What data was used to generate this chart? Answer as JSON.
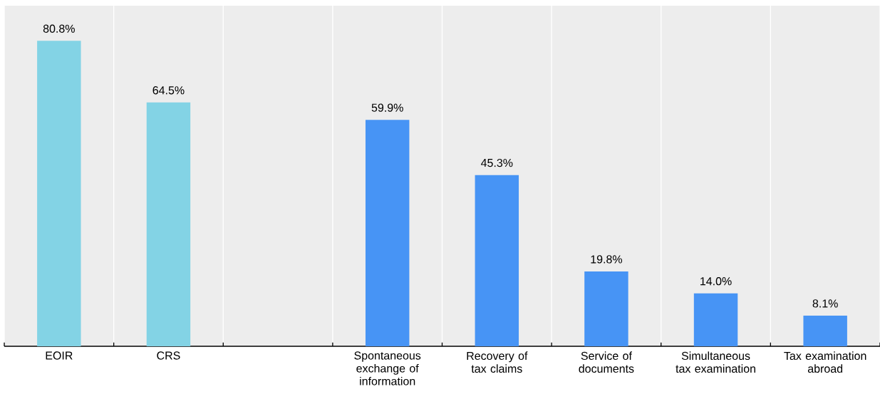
{
  "chart_data": {
    "type": "bar",
    "categories": [
      "EOIR",
      "CRS",
      null,
      "Spontaneous exchange of information",
      "Recovery of tax claims",
      "Service of documents",
      "Simultaneous tax examination",
      "Tax examination abroad"
    ],
    "values": [
      80.8,
      64.5,
      null,
      59.9,
      45.3,
      19.8,
      14.0,
      8.1
    ],
    "value_labels": [
      "80.8%",
      "64.5%",
      null,
      "59.9%",
      "45.3%",
      "19.8%",
      "14.0%",
      "8.1%"
    ],
    "colors": [
      "#83d3e5",
      "#83d3e5",
      null,
      "#4794f5",
      "#4794f5",
      "#4794f5",
      "#4794f5",
      "#4794f5"
    ],
    "grid": "x"
  }
}
